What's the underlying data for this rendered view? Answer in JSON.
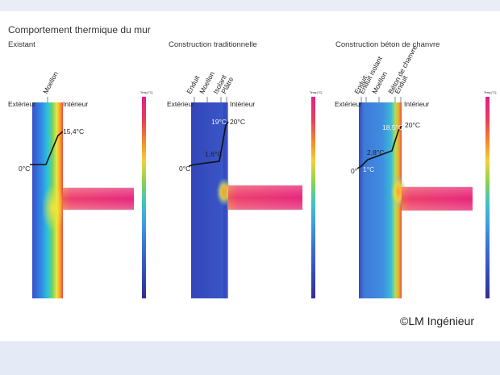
{
  "title": "Comportement thermique du mur",
  "panels": [
    {
      "title": "Existant",
      "side_outside": "Extérieur",
      "side_inside": "Intérieur",
      "layers": [
        "Moellon"
      ],
      "temps": [
        "0°C",
        "15,4°C"
      ]
    },
    {
      "title": "Construction traditionnelle",
      "side_outside": "Extérieur",
      "side_inside": "Intérieur",
      "layers": [
        "Enduit",
        "Moellon",
        "Isolant",
        "Plâtre"
      ],
      "temps": [
        "0°C",
        "1,6°C",
        "19°C",
        "20°C"
      ]
    },
    {
      "title": "Construction béton de chanvre",
      "side_outside": "Extérieur",
      "side_inside": "Intérieur",
      "layers": [
        "Enduit",
        "Enduit isolant",
        "Moellon",
        "Béton de chanvre",
        "Enduit"
      ],
      "temps": [
        "0°",
        "1°C",
        "2,8°C",
        "18,5°C",
        "20°C"
      ]
    }
  ],
  "scale_label": "Temp [°C]",
  "credit": "©LM Ingénieur"
}
